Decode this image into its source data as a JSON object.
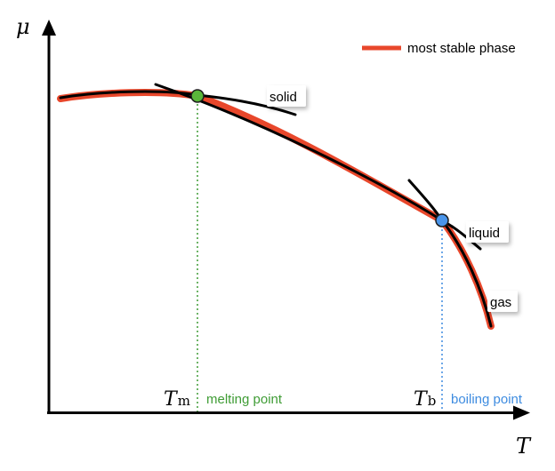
{
  "axes": {
    "y_title": "μ",
    "x_title": "T"
  },
  "legend": {
    "label": "most stable phase"
  },
  "phases": {
    "solid": "solid",
    "liquid": "liquid",
    "gas": "gas"
  },
  "points": {
    "melting": {
      "symbol": "T",
      "subscript": "m",
      "label": "melting point"
    },
    "boiling": {
      "symbol": "T",
      "subscript": "b",
      "label": "boiling point"
    }
  },
  "colors": {
    "axis": "#000000",
    "curve": "#000000",
    "stable_phase": "#e8472b",
    "melting": "#3f9c35",
    "melting_dot": "#5ab73a",
    "boiling": "#3e8ce0",
    "boiling_dot": "#4a95ea"
  }
}
